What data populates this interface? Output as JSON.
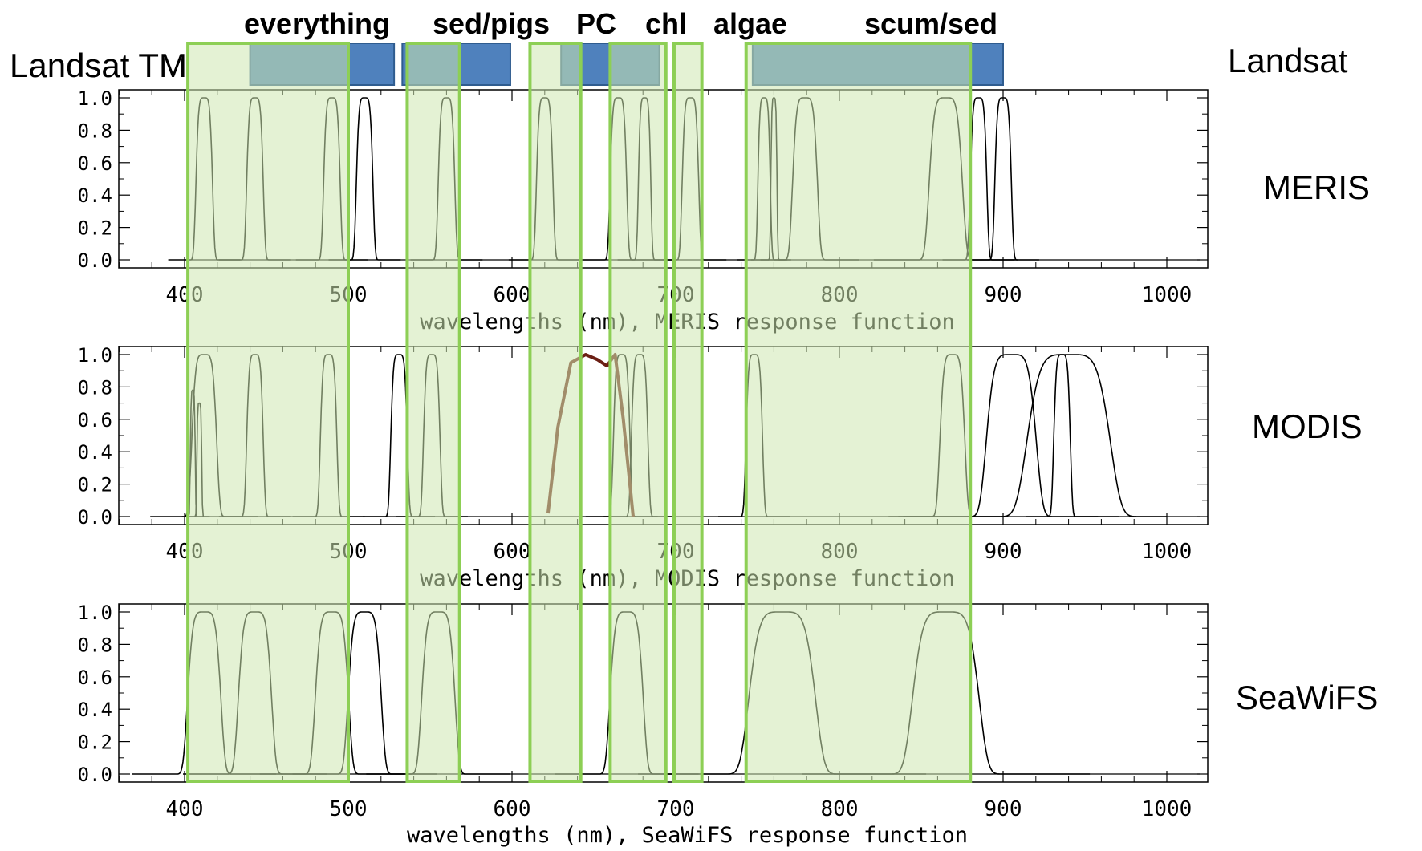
{
  "colors": {
    "band_fill": "#cde8b0",
    "band_stroke": "#8dcf55",
    "landsat_fill": "#4f81bd",
    "landsat_stroke": "#2f5c8f",
    "overlap_fill": "#6e9e88",
    "pc_curve": "#6b1f14",
    "response_line": "#000000"
  },
  "band_labels": [
    "everything",
    "sed/pigs",
    "PC",
    "chl",
    "algae",
    "scum/sed"
  ],
  "landsat_left_label": "Landsat TM",
  "landsat_right_label": "Landsat",
  "chart_data": [
    {
      "type": "line",
      "sensor_label": "MERIS",
      "xlabel": "wavelengths (nm), MERIS response function",
      "xlim": [
        350,
        1000
      ],
      "ylim": [
        0,
        1
      ],
      "x_ticks": [
        "400",
        "500",
        "600",
        "700",
        "800",
        "900",
        "1000"
      ],
      "y_ticks": [
        "1.0",
        "0.8",
        "0.6",
        "0.4",
        "0.2",
        "0.0"
      ],
      "series": [
        {
          "center": 412,
          "fwhm": 10
        },
        {
          "center": 443,
          "fwhm": 10
        },
        {
          "center": 490,
          "fwhm": 10
        },
        {
          "center": 510,
          "fwhm": 10
        },
        {
          "center": 560,
          "fwhm": 10
        },
        {
          "center": 620,
          "fwhm": 10
        },
        {
          "center": 665,
          "fwhm": 10
        },
        {
          "center": 681,
          "fwhm": 7.5
        },
        {
          "center": 709,
          "fwhm": 10
        },
        {
          "center": 754,
          "fwhm": 7.5
        },
        {
          "center": 760,
          "fwhm": 3.75
        },
        {
          "center": 779,
          "fwhm": 15
        },
        {
          "center": 865,
          "fwhm": 20
        },
        {
          "center": 885,
          "fwhm": 10
        },
        {
          "center": 900,
          "fwhm": 10
        }
      ]
    },
    {
      "type": "line",
      "sensor_label": "MODIS",
      "xlabel": "wavelengths (nm), MODIS response function",
      "xlim": [
        350,
        1000
      ],
      "ylim": [
        0,
        1
      ],
      "x_ticks": [
        "400",
        "500",
        "600",
        "700",
        "800",
        "900",
        "1000"
      ],
      "y_ticks": [
        "1.0",
        "0.8",
        "0.6",
        "0.4",
        "0.2",
        "0.0"
      ],
      "series": [
        {
          "center": 405,
          "fwhm": 3,
          "peak": 0.78
        },
        {
          "center": 409,
          "fwhm": 3,
          "peak": 0.7
        },
        {
          "center": 412,
          "fwhm": 15
        },
        {
          "center": 443,
          "fwhm": 10
        },
        {
          "center": 488,
          "fwhm": 10
        },
        {
          "center": 531,
          "fwhm": 10
        },
        {
          "center": 551,
          "fwhm": 10
        },
        {
          "center": 667,
          "fwhm": 10
        },
        {
          "center": 678,
          "fwhm": 10
        },
        {
          "center": 748,
          "fwhm": 10
        },
        {
          "center": 869,
          "fwhm": 15
        },
        {
          "center": 905,
          "fwhm": 30
        },
        {
          "center": 936,
          "fwhm": 10
        },
        {
          "center": 940,
          "fwhm": 50
        }
      ],
      "pc_curve": {
        "x": [
          622,
          628,
          636,
          645,
          652,
          658,
          663,
          668,
          674
        ],
        "y": [
          0.02,
          0.55,
          0.95,
          1.0,
          0.97,
          0.93,
          1.0,
          0.6,
          0.0
        ]
      }
    },
    {
      "type": "line",
      "sensor_label": "SeaWiFS",
      "xlabel": "wavelengths (nm), SeaWiFS response function",
      "xlim": [
        350,
        1000
      ],
      "ylim": [
        0,
        1
      ],
      "x_ticks": [
        "400",
        "500",
        "600",
        "700",
        "800",
        "900",
        "1000"
      ],
      "y_ticks": [
        "1.0",
        "0.8",
        "0.6",
        "0.4",
        "0.2",
        "0.0"
      ],
      "series": [
        {
          "center": 412,
          "fwhm": 20
        },
        {
          "center": 443,
          "fwhm": 20
        },
        {
          "center": 490,
          "fwhm": 20
        },
        {
          "center": 510,
          "fwhm": 20
        },
        {
          "center": 555,
          "fwhm": 20
        },
        {
          "center": 670,
          "fwhm": 20
        },
        {
          "center": 765,
          "fwhm": 40
        },
        {
          "center": 865,
          "fwhm": 40
        }
      ]
    }
  ],
  "highlight_bands_nm": [
    {
      "label": "everything",
      "from": 402,
      "to": 500
    },
    {
      "label": "sed/pigs",
      "from": 536,
      "to": 568
    },
    {
      "label": "PC",
      "from": 611,
      "to": 642
    },
    {
      "label": "chl",
      "from": 660,
      "to": 694
    },
    {
      "label": "algae",
      "from": 699,
      "to": 716
    },
    {
      "label": "scum/sed",
      "from": 743,
      "to": 880
    }
  ],
  "landsat_bands_nm": [
    {
      "from": 440,
      "to": 528
    },
    {
      "from": 533,
      "to": 599
    },
    {
      "from": 630,
      "to": 690
    },
    {
      "from": 747,
      "to": 900
    }
  ]
}
